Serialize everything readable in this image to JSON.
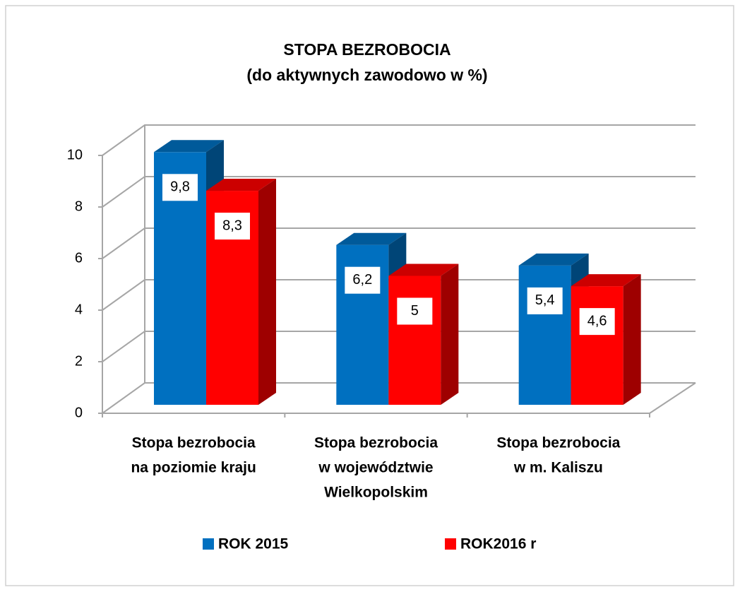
{
  "chart_data": {
    "type": "bar3d",
    "title": "STOPA BEZROBOCIA",
    "subtitle": "(do aktywnych zawodowo w %)",
    "categories": [
      [
        "Stopa bezrobocia",
        "na poziomie kraju"
      ],
      [
        "Stopa bezrobocia",
        "w województwie",
        "Wielkopolskim"
      ],
      [
        "Stopa bezrobocia",
        "w m. Kaliszu"
      ]
    ],
    "series": [
      {
        "name": "ROK 2015",
        "color": "#0070c0",
        "values": [
          9.8,
          6.2,
          5.4
        ],
        "value_labels": [
          "9,8",
          "6,2",
          "5,4"
        ]
      },
      {
        "name": "ROK2016 r",
        "color": "#ff0000",
        "values": [
          8.3,
          5,
          4.6
        ],
        "value_labels": [
          "8,3",
          "5",
          "4,6"
        ]
      }
    ],
    "ylim": [
      0,
      10
    ],
    "yticks": [
      0,
      2,
      4,
      6,
      8,
      10
    ],
    "grid": true,
    "legend": "bottom"
  }
}
